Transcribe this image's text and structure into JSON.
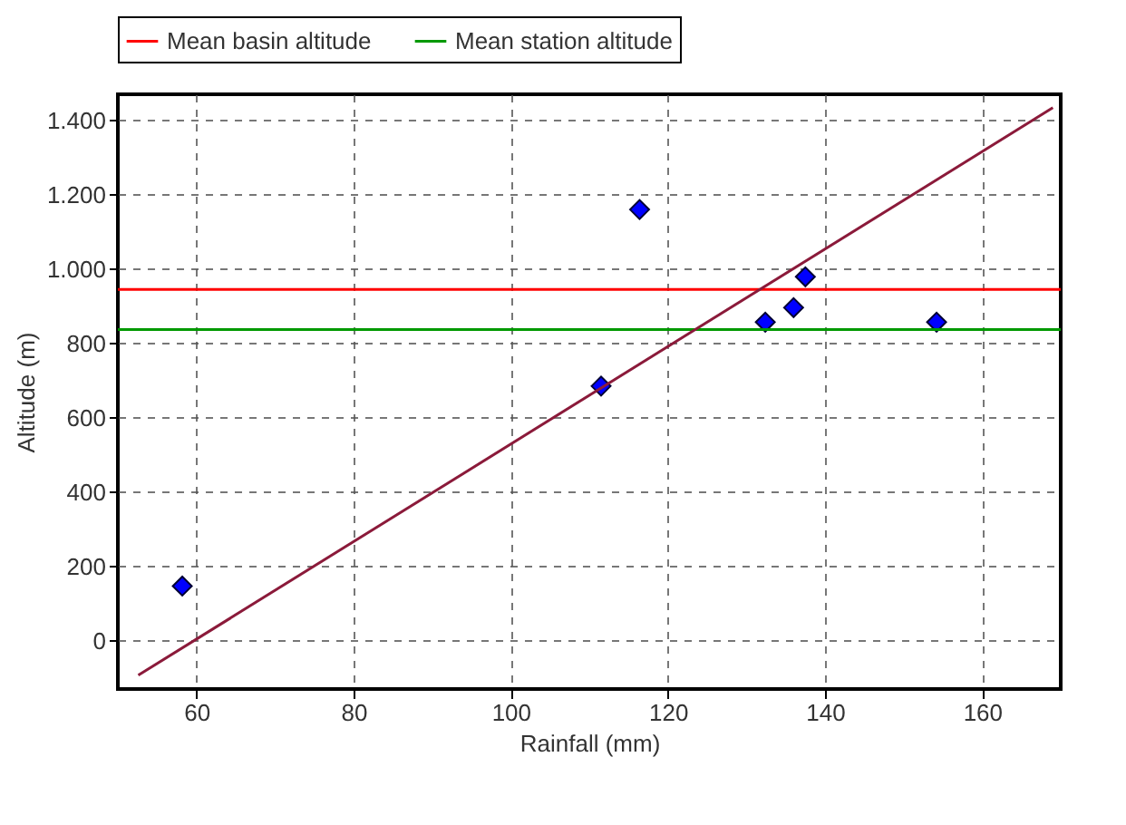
{
  "chart_data": {
    "type": "scatter",
    "xlabel": "Rainfall (mm)",
    "ylabel": "Altitude (m)",
    "xlim": [
      50,
      170
    ],
    "ylim": [
      -130,
      1470
    ],
    "xticks": [
      60,
      80,
      100,
      120,
      140,
      160
    ],
    "yticks": [
      0,
      200,
      400,
      600,
      800,
      {
        "value": 1000,
        "label": "1.000"
      },
      {
        "value": 1200,
        "label": "1.200"
      },
      {
        "value": 1400,
        "label": "1.400"
      }
    ],
    "series": [
      {
        "color": "#0000ff",
        "marker": "diamond",
        "x": [
          58.2,
          111.5,
          116.4,
          132.4,
          136,
          137.5,
          154.2
        ],
        "values": [
          147,
          685,
          1160,
          857,
          896,
          979,
          857
        ]
      },
      {
        "type": "line",
        "color": "#8b1a3a",
        "marker": "none",
        "line_style": "solid",
        "x": [
          52.6,
          169
        ],
        "values": [
          -93,
          1434
        ]
      }
    ],
    "ref_lines": [
      {
        "axis": "y",
        "value": 945,
        "label": "Mean basin altitude",
        "color": "#ff0000"
      },
      {
        "axis": "y",
        "value": 837,
        "label": "Mean station altitude",
        "color": "#009900"
      }
    ],
    "grid": true,
    "legend": "top"
  }
}
